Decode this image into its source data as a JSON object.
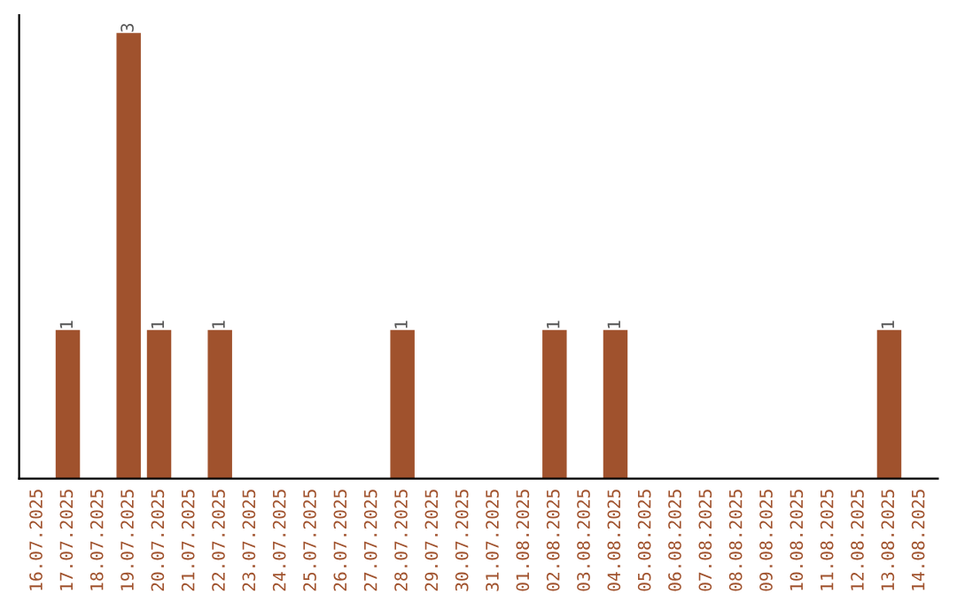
{
  "chart_data": {
    "type": "bar",
    "categories": [
      "16.07.2025",
      "17.07.2025",
      "18.07.2025",
      "19.07.2025",
      "20.07.2025",
      "21.07.2025",
      "22.07.2025",
      "23.07.2025",
      "24.07.2025",
      "25.07.2025",
      "26.07.2025",
      "27.07.2025",
      "28.07.2025",
      "29.07.2025",
      "30.07.2025",
      "31.07.2025",
      "01.08.2025",
      "02.08.2025",
      "03.08.2025",
      "04.08.2025",
      "05.08.2025",
      "06.08.2025",
      "07.08.2025",
      "08.08.2025",
      "09.08.2025",
      "10.08.2025",
      "11.08.2025",
      "12.08.2025",
      "13.08.2025",
      "14.08.2025"
    ],
    "values": [
      0,
      1,
      0,
      3,
      1,
      0,
      1,
      0,
      0,
      0,
      0,
      0,
      1,
      0,
      0,
      0,
      0,
      1,
      0,
      1,
      0,
      0,
      0,
      0,
      0,
      0,
      0,
      0,
      1,
      0
    ],
    "value_labels": [
      null,
      "1",
      null,
      "3",
      "1",
      null,
      "1",
      null,
      null,
      null,
      null,
      null,
      "1",
      null,
      null,
      null,
      null,
      "1",
      null,
      "1",
      null,
      null,
      null,
      null,
      null,
      null,
      null,
      null,
      "1",
      null
    ],
    "color": "#a0522d",
    "grid": false,
    "tick_labels": "x"
  }
}
